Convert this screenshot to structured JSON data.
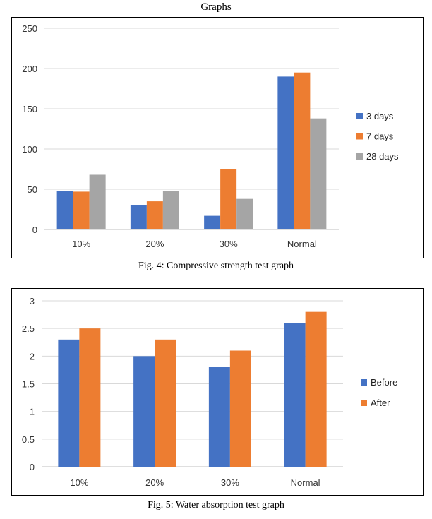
{
  "page": {
    "heading": "Graphs",
    "captions": [
      "Fig. 4: Compressive strength test graph",
      "Fig. 5: Water absorption test graph"
    ]
  },
  "colors": {
    "blue": "#4472C4",
    "orange": "#ED7D31",
    "gray": "#A5A5A5",
    "grid": "#d9d9d9",
    "axis": "#bfbfbf"
  },
  "chart_data": [
    {
      "type": "bar",
      "title": "",
      "xlabel": "",
      "ylabel": "",
      "categories": [
        "10%",
        "20%",
        "30%",
        "Normal"
      ],
      "series": [
        {
          "name": "3 days",
          "values": [
            48,
            30,
            17,
            190
          ],
          "color": "#4472C4"
        },
        {
          "name": "7 days",
          "values": [
            47,
            35,
            75,
            195
          ],
          "color": "#ED7D31"
        },
        {
          "name": "28 days",
          "values": [
            68,
            48,
            38,
            138
          ],
          "color": "#A5A5A5"
        }
      ],
      "ylim": [
        0,
        250
      ],
      "yticks": [
        0,
        50,
        100,
        150,
        200,
        250
      ],
      "grid": true,
      "legend": "right"
    },
    {
      "type": "bar",
      "title": "",
      "xlabel": "",
      "ylabel": "",
      "categories": [
        "10%",
        "20%",
        "30%",
        "Normal"
      ],
      "series": [
        {
          "name": "Before",
          "values": [
            2.3,
            2.0,
            1.8,
            2.6
          ],
          "color": "#4472C4"
        },
        {
          "name": "After",
          "values": [
            2.5,
            2.3,
            2.1,
            2.8
          ],
          "color": "#ED7D31"
        }
      ],
      "ylim": [
        0,
        3
      ],
      "yticks": [
        0,
        0.5,
        1,
        1.5,
        2,
        2.5,
        3
      ],
      "grid": true,
      "legend": "right"
    }
  ]
}
